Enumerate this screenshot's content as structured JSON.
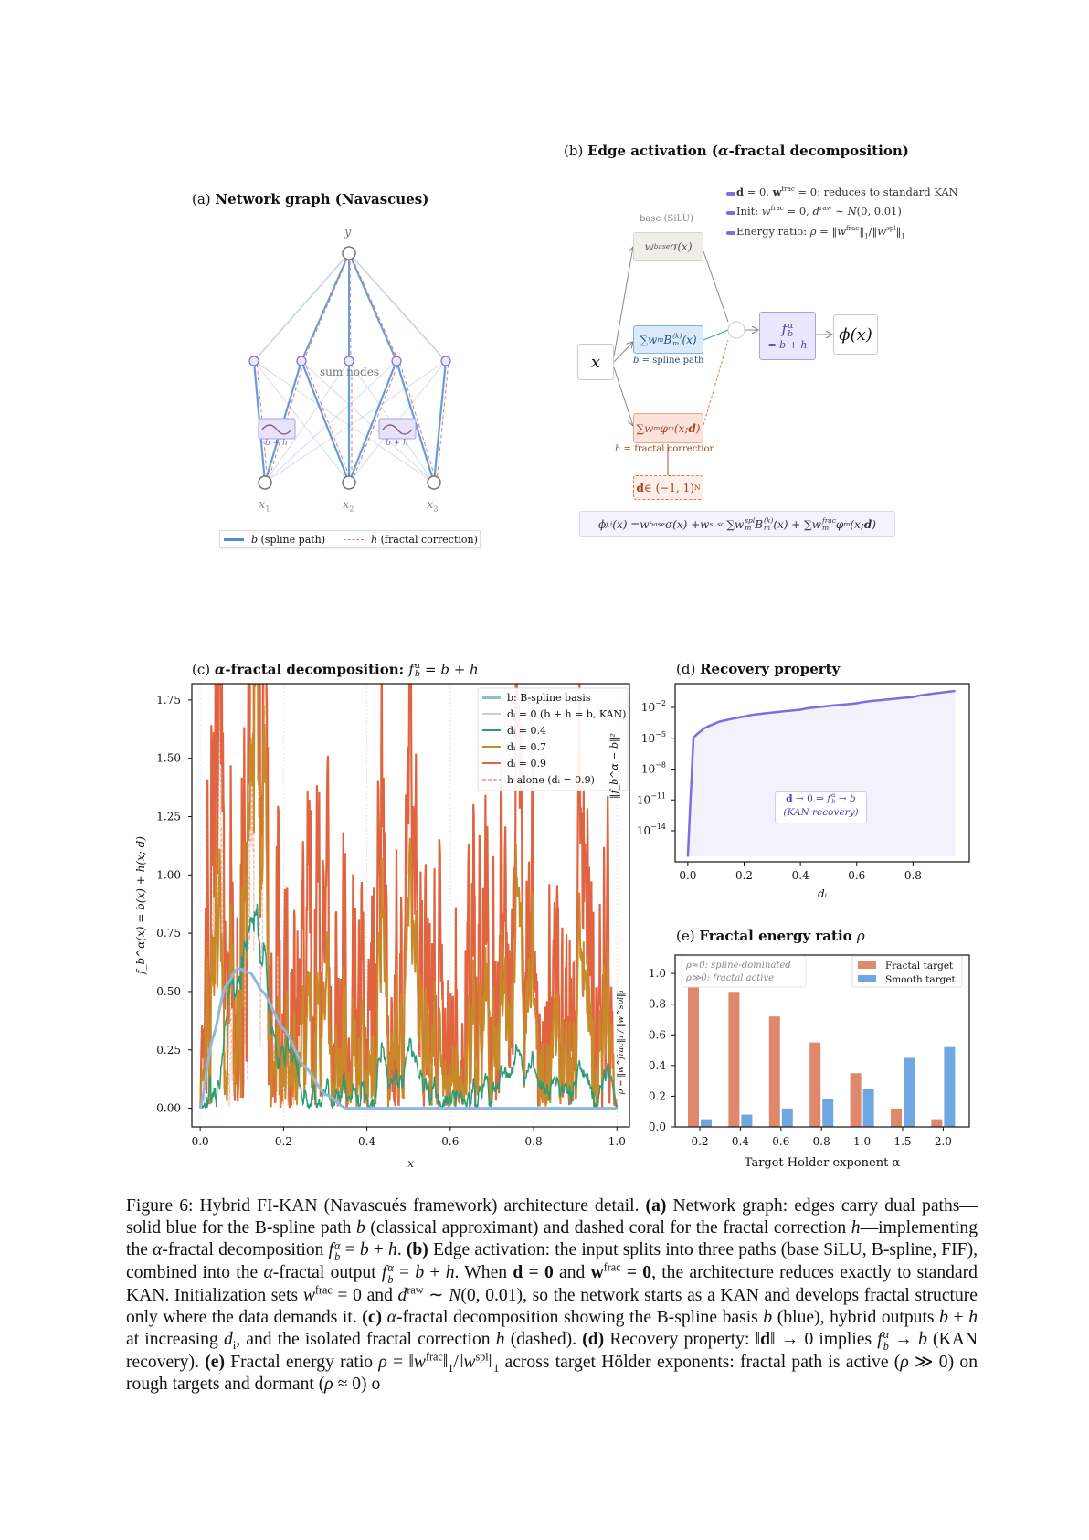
{
  "panel_a": {
    "title": [
      {
        "t": "(a) "
      },
      {
        "t": "Network graph (Navascues)",
        "b": 1
      }
    ],
    "output_node": "y",
    "sum_nodes_label": "sum nodes",
    "inputs": [
      {
        "t": "x",
        "i": 1,
        "sub": "1"
      },
      {
        "t": "x",
        "i": 1,
        "sub": "2"
      },
      {
        "t": "x",
        "i": 1,
        "sub": "3"
      }
    ],
    "edge_box_label": "b + h",
    "legend": [
      [
        {
          "t": "b",
          "i": 1
        },
        " (spline path)"
      ],
      [
        {
          "t": "h",
          "i": 1
        },
        " (fractal correction)"
      ]
    ],
    "colors": {
      "spline": "#4a90d9",
      "fractal": "#e07a5f",
      "node": "#777777",
      "sum_node": "#7b6fe0"
    }
  },
  "panel_b": {
    "title": [
      {
        "t": "(b) "
      },
      {
        "t": "Edge activation (",
        "b": 1
      },
      {
        "t": "α",
        "i": 1,
        "b": 1
      },
      {
        "t": "-fractal decomposition)",
        "b": 1
      }
    ],
    "notes": [
      [
        {
          "t": "d",
          "b": 1
        },
        " = 0, ",
        {
          "t": "w",
          "b": 1,
          "sup": "frac"
        },
        " = 0: reduces to standard KAN"
      ],
      [
        "Init: ",
        {
          "t": "w",
          "i": 1,
          "sup": "frac"
        },
        " = 0, ",
        {
          "t": "d",
          "i": 1,
          "sup": "raw"
        },
        " ∼ ",
        {
          "t": "N",
          "i": 1
        },
        "(0, 0.01)"
      ],
      [
        "Energy ratio: ",
        {
          "t": "ρ",
          "i": 1
        },
        " = ‖",
        {
          "t": "w",
          "i": 1,
          "sup": "frac"
        },
        {
          "t": "‖",
          "sub": "1"
        },
        "/‖",
        {
          "t": "w",
          "i": 1,
          "sup": "spl"
        },
        {
          "t": "‖",
          "sub": "1"
        }
      ]
    ],
    "base_label": "base (SiLU)",
    "base_box": [
      {
        "t": "w",
        "sup": "base"
      },
      "σ(x)"
    ],
    "spline_box": [
      "∑",
      {
        "t": "w",
        "sub": "m"
      },
      {
        "t": "B",
        "sup": "(k)",
        "sub": "m"
      },
      "(x)"
    ],
    "spline_caption": [
      {
        "t": "b",
        "i": 1
      },
      " = spline path"
    ],
    "fractal_box": [
      "∑",
      {
        "t": "w",
        "sub": "m"
      },
      {
        "t": "φ",
        "sub": "m"
      },
      "(x; ",
      {
        "t": "d",
        "b": 1
      },
      ")"
    ],
    "fractal_caption": [
      {
        "t": "h",
        "i": 1
      },
      " = fractal correction"
    ],
    "d_box": [
      {
        "t": "d",
        "b": 1
      },
      " ∈ (−1, 1)",
      {
        "t": "",
        "sup": "N"
      }
    ],
    "input_box": "x",
    "f_box": [
      {
        "t": "f",
        "sup": "α",
        "sub": "b"
      }
    ],
    "f_box_sub": "= b + h",
    "output_box": "ϕ(x)",
    "formula": [
      {
        "t": "ϕ",
        "sub": "j,i"
      },
      "(x) = ",
      {
        "t": "w",
        "sup": "base"
      },
      "σ(x) + ",
      {
        "t": "w",
        "sup": "s. sc."
      },
      " ∑",
      {
        "t": "w",
        "sup": "spl",
        "sub": "m"
      },
      {
        "t": "B",
        "sup": "(k)",
        "sub": "m"
      },
      "(x) + ∑",
      {
        "t": "w",
        "sup": "frac",
        "sub": "m"
      },
      {
        "t": "φ",
        "sub": "m"
      },
      "(x; ",
      {
        "t": "d",
        "b": 1
      },
      ")"
    ],
    "colors": {
      "note_marker": "#7b6fe0",
      "spline": "#4a90d9",
      "fractal": "#d9774f"
    }
  },
  "chart_data": [
    {
      "panel": "c",
      "type": "line",
      "title": [
        {
          "t": "(c) "
        },
        {
          "t": "α",
          "i": 1,
          "b": 1
        },
        {
          "t": "-fractal decomposition: ",
          "b": 1
        },
        {
          "t": "f",
          "i": 1,
          "sup": "α",
          "sub": "b"
        },
        {
          "t": " = b + h",
          "i": 1
        }
      ],
      "xlabel": "x",
      "ylabel": "f_b^α(x) = b(x) + h(x; d)",
      "xlim": [
        -0.02,
        1.03
      ],
      "ylim": [
        -0.08,
        1.82
      ],
      "xticks": [
        "0.0",
        "0.2",
        "0.4",
        "0.6",
        "0.8",
        "1.0"
      ],
      "yticks": [
        "0.00",
        "0.25",
        "0.50",
        "0.75",
        "1.00",
        "1.25",
        "1.50",
        "1.75"
      ],
      "grid": "vertical dotted",
      "legend_position": "top-right",
      "b_basis": {
        "x": [
          0,
          0.03,
          0.06,
          0.09,
          0.12,
          0.15,
          0.2,
          0.25,
          0.3,
          0.35,
          1.0
        ],
        "y": [
          0,
          0.3,
          0.52,
          0.6,
          0.58,
          0.5,
          0.34,
          0.18,
          0.06,
          0,
          0
        ]
      },
      "series": [
        {
          "name": "b: B-spline basis",
          "color": "#8fb8e0",
          "d": null
        },
        {
          "name": "dᵢ = 0 (b + h = b, KAN)",
          "color": "#cccccc",
          "d": 0
        },
        {
          "name": "dᵢ = 0.4",
          "color": "#2a9d78",
          "d": 0.4
        },
        {
          "name": "dᵢ = 0.7",
          "color": "#c8892a",
          "d": 0.7
        },
        {
          "name": "dᵢ = 0.9",
          "color": "#e0643f",
          "d": 0.9
        },
        {
          "name": "h alone (dᵢ = 0.9)",
          "color": "#f2b3a3",
          "d": 0.9,
          "dashed": true
        }
      ]
    },
    {
      "panel": "d",
      "type": "line",
      "title": [
        {
          "t": "(d) "
        },
        {
          "t": "Recovery property",
          "b": 1
        }
      ],
      "xlabel": "dᵢ",
      "ylabel": "‖f_b^α − b‖²",
      "yscale": "log",
      "xlim": [
        -0.045,
        1.0
      ],
      "xticks": [
        "0.0",
        "0.2",
        "0.4",
        "0.6",
        "0.8"
      ],
      "yticks": [
        {
          "base": "10",
          "exp": "−2",
          "v": -2
        },
        {
          "base": "10",
          "exp": "−5",
          "v": -5
        },
        {
          "base": "10",
          "exp": "−8",
          "v": -8
        },
        {
          "base": "10",
          "exp": "−11",
          "v": -11
        },
        {
          "base": "10",
          "exp": "−14",
          "v": -14
        }
      ],
      "x": [
        0,
        0.02,
        0.05,
        0.1,
        0.2,
        0.4,
        0.6,
        0.8,
        0.95
      ],
      "y": [
        3e-17,
        1e-05,
        6e-05,
        0.0003,
        0.0013,
        0.006,
        0.025,
        0.1,
        0.4
      ],
      "color": "#7b6fe0",
      "annotation": [
        [
          {
            "t": "d",
            "b": 1
          },
          " → 0 ⇒ ",
          {
            "t": "f",
            "i": 1,
            "sup": "α",
            "sub": "b"
          },
          " → ",
          {
            "t": "b",
            "i": 1
          }
        ],
        [
          "(KAN recovery)"
        ]
      ]
    },
    {
      "panel": "e",
      "type": "bar",
      "title": [
        {
          "t": "(e) "
        },
        {
          "t": "Fractal energy ratio ",
          "b": 1
        },
        {
          "t": "ρ",
          "i": 1
        }
      ],
      "xlabel": "Target Holder exponent α",
      "ylabel": "ρ = ‖w^frac‖₁ / ‖w^spl‖₁",
      "ylim": [
        0,
        1.12
      ],
      "yticks": [
        "0.0",
        "0.2",
        "0.4",
        "0.6",
        "0.8",
        "1.0"
      ],
      "categories": [
        "0.2",
        "0.4",
        "0.6",
        "0.8",
        "1.0",
        "1.5",
        "2.0"
      ],
      "series": [
        {
          "name": "Fractal target",
          "color": "#e0886b",
          "values": [
            0.95,
            0.88,
            0.72,
            0.55,
            0.35,
            0.12,
            0.05
          ]
        },
        {
          "name": "Smooth target",
          "color": "#6fa8e0",
          "values": [
            0.05,
            0.08,
            0.12,
            0.18,
            0.25,
            0.45,
            0.52
          ]
        }
      ],
      "legend_position": "top-right",
      "annotation": [
        "ρ≈0: spline-dominated",
        "ρ≫0: fractal active"
      ]
    }
  ],
  "caption": [
    "Figure 6: Hybrid FI-KAN (Navascués framework) architecture detail. ",
    {
      "t": "(a)",
      "b": 1
    },
    " Network graph: edges carry dual paths—solid blue for the B-spline path ",
    {
      "t": "b",
      "i": 1
    },
    " (classical approximant) and dashed coral for the fractal correction ",
    {
      "t": "h",
      "i": 1
    },
    "—implementing the ",
    {
      "t": "α",
      "i": 1
    },
    "-fractal decomposition ",
    {
      "t": "f",
      "i": 1,
      "sup": "α",
      "sub": "b"
    },
    " = ",
    {
      "t": "b",
      "i": 1
    },
    " + ",
    {
      "t": "h",
      "i": 1
    },
    ". ",
    {
      "t": "(b)",
      "b": 1
    },
    " Edge activation: the input splits into three paths (base SiLU, B-spline, FIF), combined into the ",
    {
      "t": "α",
      "i": 1
    },
    "-fractal output ",
    {
      "t": "f",
      "i": 1,
      "sup": "α",
      "sub": "b"
    },
    " = ",
    {
      "t": "b",
      "i": 1
    },
    " + ",
    {
      "t": "h",
      "i": 1
    },
    ". When ",
    {
      "t": "d = 0",
      "b": 1
    },
    " and ",
    {
      "t": "w",
      "b": 1,
      "sup": "frac"
    },
    {
      "t": " = 0",
      "b": 1
    },
    ", the architecture reduces exactly to standard KAN. Initialization sets ",
    {
      "t": "w",
      "i": 1,
      "sup": "frac"
    },
    " = 0 and ",
    {
      "t": "d",
      "i": 1,
      "sup": "raw"
    },
    " ∼ ",
    {
      "t": "N",
      "i": 1
    },
    "(0, 0.01), so the network starts as a KAN and develops fractal structure only where the data demands it. ",
    {
      "t": "(c)",
      "b": 1
    },
    " ",
    {
      "t": "α",
      "i": 1
    },
    "-fractal decomposition showing the B-spline basis ",
    {
      "t": "b",
      "i": 1
    },
    " (blue), hybrid outputs ",
    {
      "t": "b",
      "i": 1
    },
    " + ",
    {
      "t": "h",
      "i": 1
    },
    " at increasing ",
    {
      "t": "d",
      "i": 1,
      "sub": "i"
    },
    ", and the isolated fractal correction ",
    {
      "t": "h",
      "i": 1
    },
    " (dashed). ",
    {
      "t": "(d)",
      "b": 1
    },
    " Recovery property: ‖",
    {
      "t": "d",
      "b": 1
    },
    "‖ → 0 implies ",
    {
      "t": "f",
      "i": 1,
      "sup": "α",
      "sub": "b"
    },
    " → ",
    {
      "t": "b",
      "i": 1
    },
    " (KAN recovery). ",
    {
      "t": "(e)",
      "b": 1
    },
    " Fractal energy ratio ",
    {
      "t": "ρ",
      "i": 1
    },
    " = ‖",
    {
      "t": "w",
      "i": 1,
      "sup": "frac"
    },
    {
      "t": "‖",
      "sub": "1"
    },
    "/‖",
    {
      "t": "w",
      "i": 1,
      "sup": "spl"
    },
    {
      "t": "‖",
      "sub": "1"
    },
    " across target Hölder exponents: fractal path is active (",
    {
      "t": "ρ",
      "i": 1
    },
    " ≫ 0) on rough targets and dormant (",
    {
      "t": "ρ",
      "i": 1
    },
    " ≈ 0) o"
  ]
}
